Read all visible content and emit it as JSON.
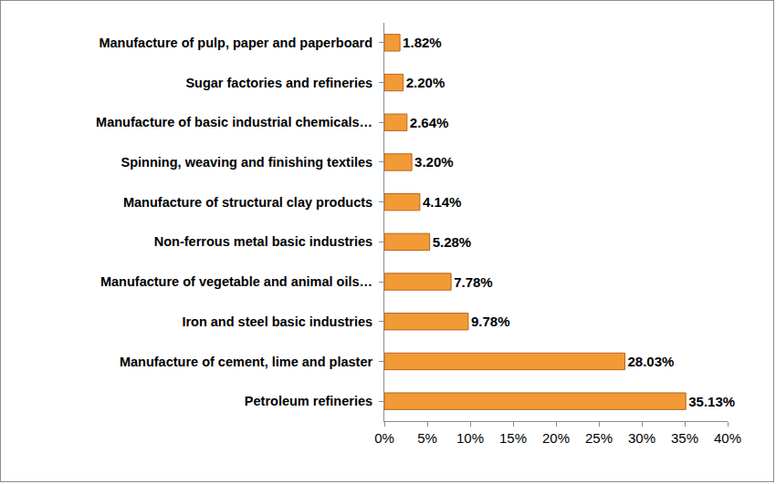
{
  "chart_data": {
    "type": "bar",
    "orientation": "horizontal",
    "categories": [
      "Petroleum refineries",
      "Manufacture of cement, lime and plaster",
      "Iron and steel basic industries",
      "Manufacture of vegetable and animal oils…",
      "Non-ferrous metal basic industries",
      "Manufacture of structural clay products",
      "Spinning, weaving and finishing textiles",
      "Manufacture of basic industrial chemicals…",
      "Sugar factories and refineries",
      "Manufacture of pulp, paper and paperboard"
    ],
    "values": [
      35.13,
      28.03,
      9.78,
      7.78,
      5.28,
      4.14,
      3.2,
      2.64,
      2.2,
      1.82
    ],
    "value_labels": [
      "35.13%",
      "28.03%",
      "9.78%",
      "7.78%",
      "5.28%",
      "4.14%",
      "3.20%",
      "2.64%",
      "2.20%",
      "1.82%"
    ],
    "data_labels": true,
    "color": "#f29a36",
    "xlim": [
      0,
      40
    ],
    "xticks": [
      {
        "value": 0,
        "label": "0%"
      },
      {
        "value": 5,
        "label": "5%"
      },
      {
        "value": 10,
        "label": "10%"
      },
      {
        "value": 15,
        "label": "15%"
      },
      {
        "value": 20,
        "label": "20%"
      },
      {
        "value": 25,
        "label": "25%"
      },
      {
        "value": 30,
        "label": "30%"
      },
      {
        "value": 35,
        "label": "35%"
      },
      {
        "value": 40,
        "label": "40%"
      }
    ],
    "grid": false
  }
}
